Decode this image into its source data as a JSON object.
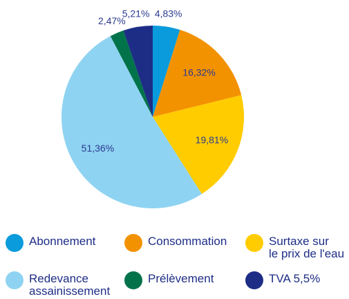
{
  "chart_data": {
    "type": "pie",
    "categories": [
      "Abonnement",
      "Consommation",
      "Surtaxe sur\nle prix de l'eau",
      "Redevance\nassainissement",
      "Prélèvement",
      "TVA 5,5%"
    ],
    "values": [
      4.83,
      16.32,
      19.81,
      51.36,
      2.47,
      5.21
    ],
    "value_labels": [
      "4,83%",
      "16,32%",
      "19,81%",
      "51,36%",
      "2,47%",
      "5,21%"
    ],
    "colors": [
      "#0a9bdc",
      "#f39200",
      "#ffcc00",
      "#8fd3f2",
      "#00734a",
      "#1d2d86"
    ]
  }
}
